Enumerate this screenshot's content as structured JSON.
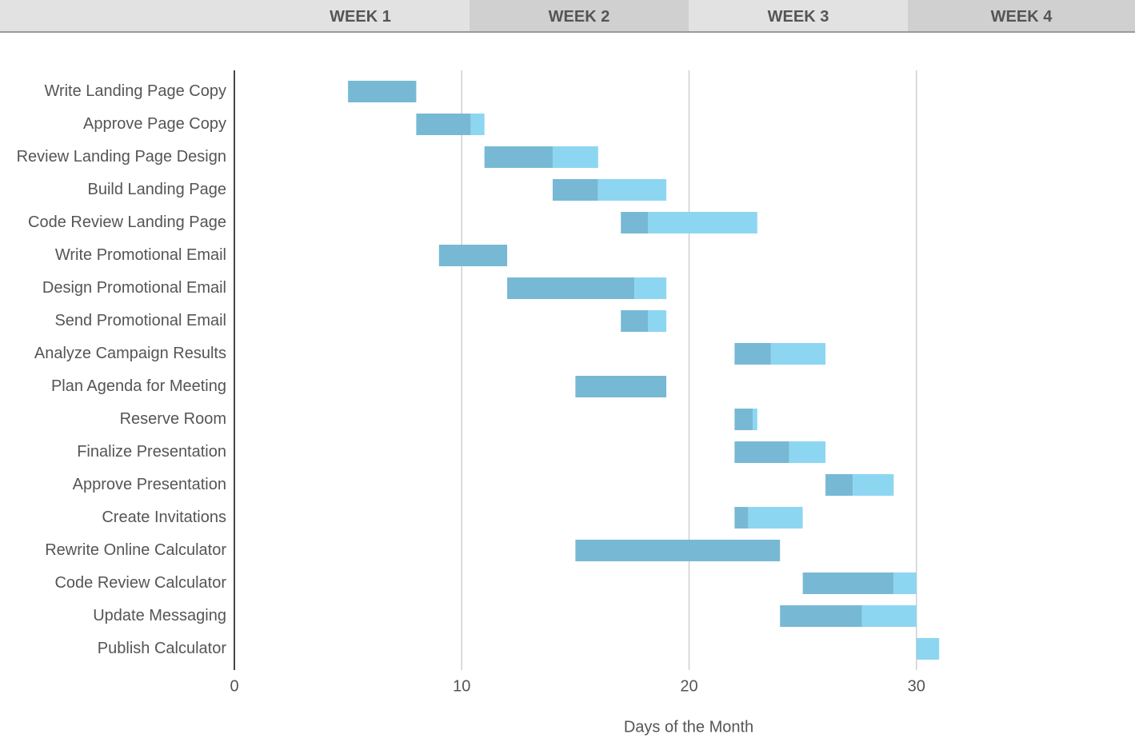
{
  "header": {
    "weeks": [
      "WEEK 1",
      "WEEK 2",
      "WEEK 3",
      "WEEK 4"
    ]
  },
  "chart_data": {
    "type": "gantt",
    "x_label": "Days of the Month",
    "categories": [
      "Write Landing Page Copy",
      "Approve Page Copy",
      "Review Landing Page Design",
      "Build Landing Page",
      "Code Review Landing Page",
      "Write Promotional Email",
      "Design Promotional Email",
      "Send Promotional Email",
      "Analyze Campaign Results",
      "Plan Agenda for Meeting",
      "Reserve Room",
      "Finalize Presentation",
      "Approve Presentation",
      "Create Invitations",
      "Rewrite Online Calculator",
      "Code Review Calculator",
      "Update Messaging",
      "Publish Calculator"
    ],
    "start": [
      5,
      8,
      11,
      14,
      17,
      9,
      12,
      17,
      22,
      15,
      22,
      22,
      26,
      22,
      15,
      25,
      24,
      30
    ],
    "done": [
      3,
      2.4,
      3,
      2,
      1.2,
      3,
      5.6,
      1.2,
      1.6,
      4,
      0.8,
      2.4,
      1.2,
      0.6,
      9,
      4,
      3.6,
      0
    ],
    "remaining": [
      0,
      0.6,
      2,
      3,
      4.8,
      0,
      1.4,
      0.8,
      2.4,
      0,
      0.2,
      1.6,
      1.8,
      2.4,
      0,
      1,
      2.4,
      1
    ],
    "done_color": "#77b9d4",
    "remaining_color": "#8dd6f2",
    "xlim": [
      0,
      40
    ],
    "xticks": [
      0,
      10,
      20,
      30
    ],
    "grid": true
  }
}
